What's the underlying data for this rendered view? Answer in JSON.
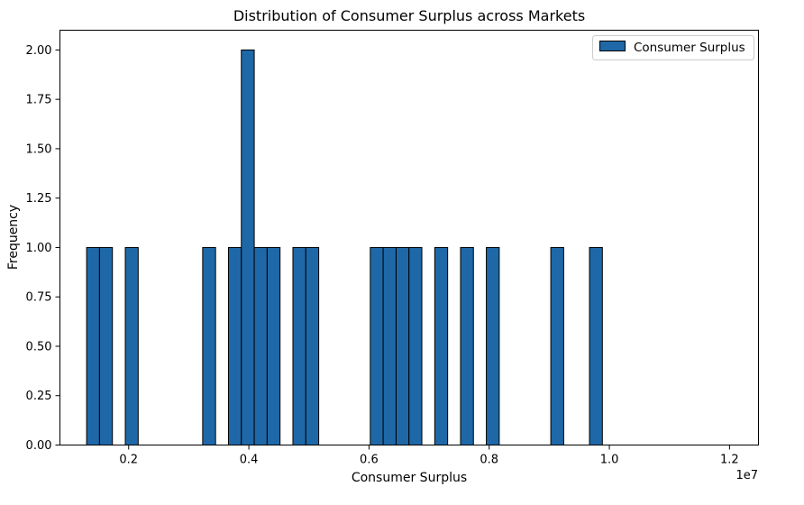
{
  "chart_data": {
    "type": "bar",
    "title": "Distribution of Consumer Surplus across Markets",
    "xlabel": "Consumer Surplus",
    "ylabel": "Frequency",
    "x_offset_label": "1e7",
    "xlim": [
      0.0856,
      1.2482
    ],
    "ylim": [
      0,
      2.1
    ],
    "bin_edges_start": 0.13,
    "bin_width": 0.02146,
    "bin_count": 50,
    "bins": [
      {
        "bin_index": 0,
        "count": 1
      },
      {
        "bin_index": 1,
        "count": 1
      },
      {
        "bin_index": 3,
        "count": 1
      },
      {
        "bin_index": 9,
        "count": 1
      },
      {
        "bin_index": 11,
        "count": 1
      },
      {
        "bin_index": 12,
        "count": 2
      },
      {
        "bin_index": 13,
        "count": 1
      },
      {
        "bin_index": 14,
        "count": 1
      },
      {
        "bin_index": 16,
        "count": 1
      },
      {
        "bin_index": 17,
        "count": 1
      },
      {
        "bin_index": 22,
        "count": 1
      },
      {
        "bin_index": 23,
        "count": 1
      },
      {
        "bin_index": 24,
        "count": 1
      },
      {
        "bin_index": 25,
        "count": 1
      },
      {
        "bin_index": 27,
        "count": 1
      },
      {
        "bin_index": 29,
        "count": 1
      },
      {
        "bin_index": 31,
        "count": 1
      },
      {
        "bin_index": 36,
        "count": 1
      },
      {
        "bin_index": 39,
        "count": 1
      }
    ],
    "x_ticks": [
      0.2,
      0.4,
      0.6,
      0.8,
      1.0,
      1.2
    ],
    "x_tick_labels": [
      "0.2",
      "0.4",
      "0.6",
      "0.8",
      "1.0",
      "1.2"
    ],
    "y_ticks": [
      0,
      0.25,
      0.5,
      0.75,
      1.0,
      1.25,
      1.5,
      1.75,
      2.0
    ],
    "y_tick_labels": [
      "0.00",
      "0.25",
      "0.50",
      "0.75",
      "1.00",
      "1.25",
      "1.50",
      "1.75",
      "2.00"
    ],
    "legend": {
      "entries": [
        {
          "name": "Consumer Surplus",
          "color": "#1f68a8"
        }
      ],
      "placement": "top-right"
    },
    "series": [
      {
        "name": "Consumer Surplus",
        "color": "#1f68a8",
        "edge_color": "#000000"
      }
    ],
    "grid": false
  }
}
